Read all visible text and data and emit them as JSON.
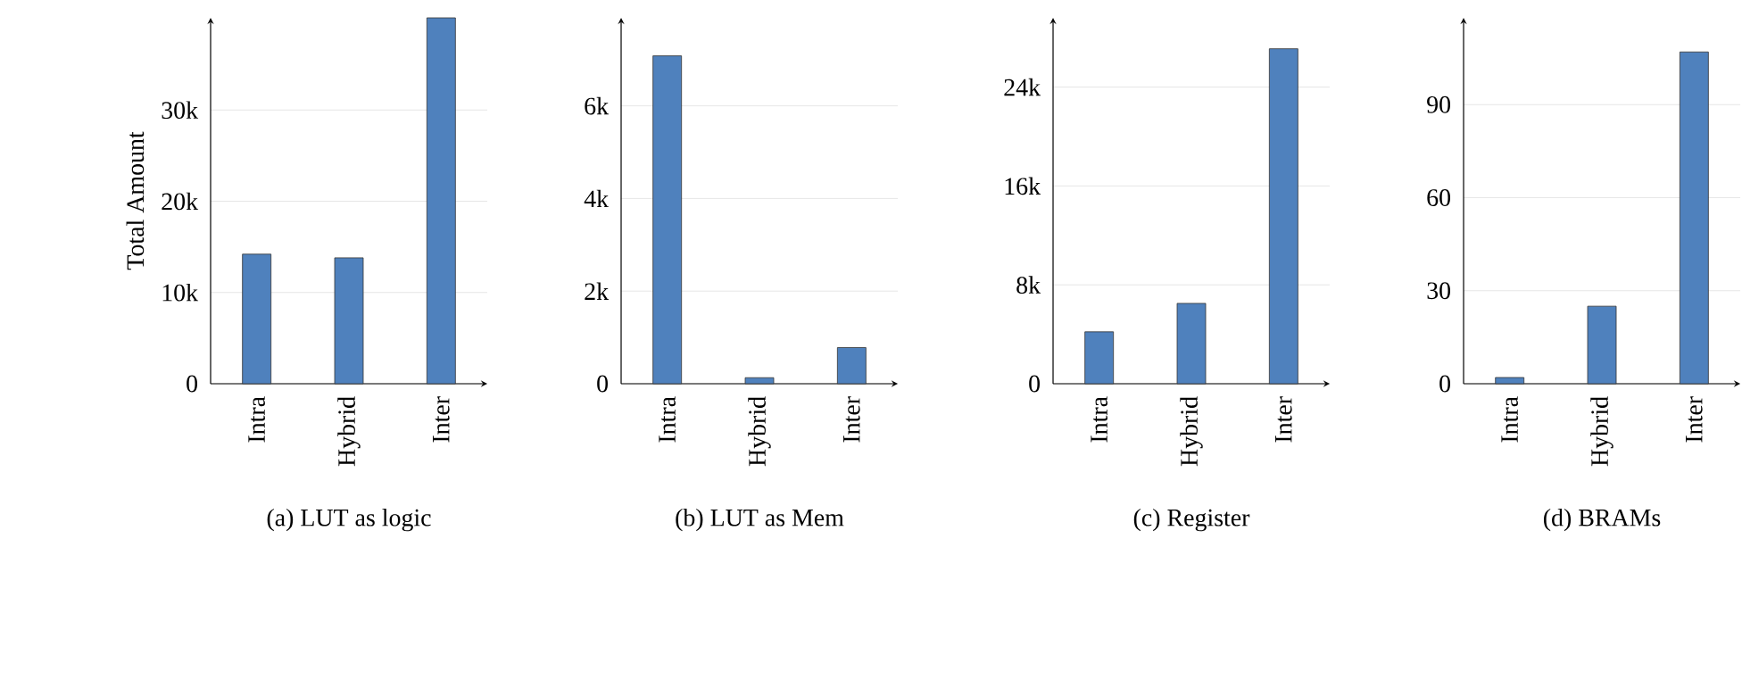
{
  "chart_data": [
    {
      "type": "bar",
      "xlabel": "(a) LUT as logic",
      "ylabel": "Total Amount",
      "categories": [
        "Intra",
        "Hybrid",
        "Inter"
      ],
      "values": [
        14200,
        13800,
        40100
      ],
      "color": "#4f81bd",
      "ylim": [
        0,
        40100
      ],
      "yticks": [
        0,
        {
          "value": 10000,
          "label": "10k"
        },
        {
          "value": 20000,
          "label": "20k"
        },
        {
          "value": 30000,
          "label": "30k"
        }
      ],
      "grid": "y"
    },
    {
      "type": "bar",
      "xlabel": "(b) LUT as Mem",
      "categories": [
        "Intra",
        "Hybrid",
        "Inter"
      ],
      "values": [
        7080,
        130,
        780
      ],
      "color": "#4f81bd",
      "ylim": [
        0,
        7900
      ],
      "yticks": [
        0,
        {
          "value": 2000,
          "label": "2k"
        },
        {
          "value": 4000,
          "label": "4k"
        },
        {
          "value": 6000,
          "label": "6k"
        }
      ],
      "grid": "y"
    },
    {
      "type": "bar",
      "xlabel": "(c) Register",
      "categories": [
        "Intra",
        "Hybrid",
        "Inter"
      ],
      "values": [
        4200,
        6500,
        27100
      ],
      "color": "#4f81bd",
      "ylim": [
        0,
        29600
      ],
      "yticks": [
        0,
        {
          "value": 8000,
          "label": "8k"
        },
        {
          "value": 16000,
          "label": "16k"
        },
        {
          "value": 24000,
          "label": "24k"
        }
      ],
      "grid": "y"
    },
    {
      "type": "bar",
      "xlabel": "(d) BRAMs",
      "categories": [
        "Intra",
        "Hybrid",
        "Inter"
      ],
      "values": [
        2,
        25,
        107
      ],
      "color": "#4f81bd",
      "ylim": [
        0,
        118
      ],
      "yticks": [
        0,
        30,
        60,
        90
      ],
      "grid": "y"
    }
  ]
}
